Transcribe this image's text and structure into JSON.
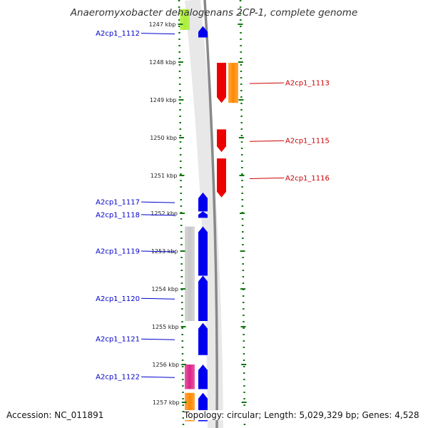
{
  "title": "Anaeromyxobacter dehalogenans 2CP-1, complete genome",
  "footer": {
    "accession": "Accession: NC_011891",
    "topology": "Topology: circular; Length: 5,029,329 bp; Genes: 4,528"
  },
  "colors": {
    "forward_gene": "#0000ee",
    "reverse_gene": "#ee0000",
    "forward_label": "#0000cc",
    "reverse_label": "#cc0000",
    "ruler_tick": "#117711",
    "backbone": "#888888"
  },
  "scale": {
    "unit": "kbp",
    "ticks": [
      "1247 kbp",
      "1248 kbp",
      "1249 kbp",
      "1250 kbp",
      "1251 kbp",
      "1252 kbp",
      "1253 kbp",
      "1254 kbp",
      "1255 kbp",
      "1256 kbp",
      "1257 kbp"
    ]
  },
  "genes_reverse": [
    {
      "label": "A2cp1_1113",
      "start_kbp": 1248.02,
      "end_kbp": 1249.08
    },
    {
      "label": "A2cp1_1115",
      "start_kbp": 1249.78,
      "end_kbp": 1250.38
    },
    {
      "label": "A2cp1_1116",
      "start_kbp": 1250.55,
      "end_kbp": 1251.58
    }
  ],
  "genes_forward": [
    {
      "label": "A2cp1_1112",
      "start_kbp": 1247.05,
      "end_kbp": 1247.35
    },
    {
      "label": "A2cp1_1117",
      "start_kbp": 1251.45,
      "end_kbp": 1251.95
    },
    {
      "label": "A2cp1_1118",
      "start_kbp": 1251.95,
      "end_kbp": 1252.12
    },
    {
      "label": "A2cp1_1119",
      "start_kbp": 1252.35,
      "end_kbp": 1253.65
    },
    {
      "label": "A2cp1_1120",
      "start_kbp": 1253.65,
      "end_kbp": 1254.85
    },
    {
      "label": "A2cp1_1121",
      "start_kbp": 1254.9,
      "end_kbp": 1255.75
    },
    {
      "label": "A2cp1_1122",
      "start_kbp": 1256.0,
      "end_kbp": 1256.65
    },
    {
      "label": "",
      "start_kbp": 1256.75,
      "end_kbp": 1257.5
    }
  ],
  "features_other": [
    {
      "color": "#ff8800",
      "strand": "reverse",
      "start_kbp": 1248.02,
      "end_kbp": 1249.08
    },
    {
      "color": "#aaee33",
      "strand": "forward",
      "start_kbp": 1246.6,
      "end_kbp": 1247.15
    },
    {
      "color": "#c8c8c8",
      "strand": "forward",
      "start_kbp": 1252.35,
      "end_kbp": 1253.65
    },
    {
      "color": "#c8c8c8",
      "strand": "forward",
      "start_kbp": 1253.65,
      "end_kbp": 1254.85
    },
    {
      "color": "#dd2288",
      "strand": "forward",
      "start_kbp": 1256.0,
      "end_kbp": 1256.65
    },
    {
      "color": "#ff8800",
      "strand": "forward",
      "start_kbp": 1256.75,
      "end_kbp": 1257.5
    }
  ]
}
